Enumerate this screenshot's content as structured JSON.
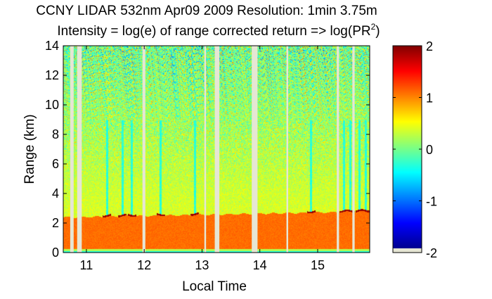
{
  "chart_data": {
    "type": "heatmap",
    "title_line1": "CCNY LIDAR 532nm Apr09 2009 Resolution: 1min 3.75m",
    "title_line2_main": "Intensity = log(e) of range corrected return => log(PR",
    "title_line2_sup": "2",
    "title_line2_end": ")",
    "xlabel": "Local Time",
    "ylabel": "Range (km)",
    "xlim": [
      10.6,
      15.9
    ],
    "ylim": [
      0,
      14
    ],
    "x_ticks": [
      "11",
      "12",
      "13",
      "14",
      "15"
    ],
    "y_ticks": [
      "0",
      "2",
      "4",
      "6",
      "8",
      "10",
      "12",
      "14"
    ],
    "colorbar": {
      "range": [
        -2,
        2
      ],
      "ticks": [
        "-2",
        "-1",
        "0",
        "1",
        "2"
      ],
      "colormap": "jet"
    },
    "grid": false,
    "features": {
      "boundary_layer_top_km": [
        2.4,
        2.8
      ],
      "data_gaps_local_time": [
        [
          10.72,
          10.78
        ],
        [
          10.84,
          10.92
        ],
        [
          11.97,
          12.02
        ],
        [
          13.04,
          13.07
        ],
        [
          13.22,
          13.3
        ],
        [
          13.86,
          13.96
        ],
        [
          14.46,
          14.49
        ],
        [
          15.33,
          15.37
        ],
        [
          15.6,
          15.64
        ]
      ],
      "cloud_streak_times": [
        11.35,
        11.62,
        11.78,
        12.28,
        12.87,
        14.88,
        15.45,
        15.56,
        15.72,
        15.83
      ]
    }
  }
}
